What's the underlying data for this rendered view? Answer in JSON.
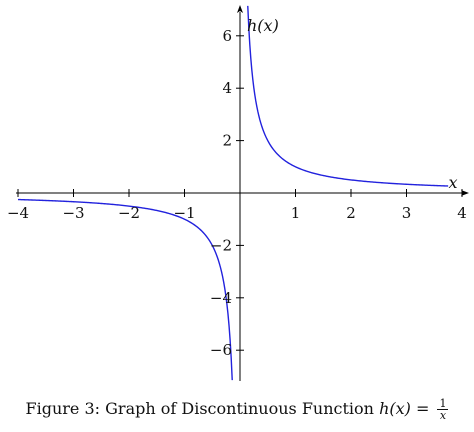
{
  "chart_data": {
    "type": "line",
    "function": "h(x) = 1/x",
    "xlabel": "x",
    "ylabel": "h(x)",
    "xlim": [
      -4,
      4
    ],
    "ylim": [
      -7,
      7
    ],
    "x_ticks": [
      -4,
      -3,
      -2,
      -1,
      1,
      2,
      3,
      4
    ],
    "x_tick_labels": [
      "−4",
      "−3",
      "−2",
      "−1",
      "1",
      "2",
      "3",
      "4"
    ],
    "y_ticks": [
      -6,
      -4,
      -2,
      2,
      4,
      6
    ],
    "y_tick_labels": [
      "−6",
      "−4",
      "−2",
      "2",
      "4",
      "6"
    ],
    "series": [
      {
        "color": "#2222dd",
        "x": [
          -4,
          -3,
          -2,
          -1.5,
          -1,
          -0.75,
          -0.5,
          -0.4,
          -0.3,
          -0.25,
          -0.2,
          -0.16,
          -0.14
        ],
        "y": [
          -0.25,
          -0.33,
          -0.5,
          -0.67,
          -1,
          -1.33,
          -2,
          -2.5,
          -3.33,
          -4,
          -5,
          -6.25,
          -7.14
        ]
      },
      {
        "color": "#2222dd",
        "x": [
          0.14,
          0.16,
          0.2,
          0.25,
          0.3,
          0.4,
          0.5,
          0.75,
          1,
          1.5,
          2,
          3,
          3.75
        ],
        "y": [
          7.14,
          6.25,
          5,
          4,
          3.33,
          2.5,
          2,
          1.33,
          1,
          0.67,
          0.5,
          0.33,
          0.27
        ]
      }
    ]
  },
  "caption": {
    "prefix": "Figure 3:  Graph of Discontinuous Function ",
    "func": "h(x)",
    "equals": " = ",
    "numerator": "1",
    "denominator": "x"
  }
}
